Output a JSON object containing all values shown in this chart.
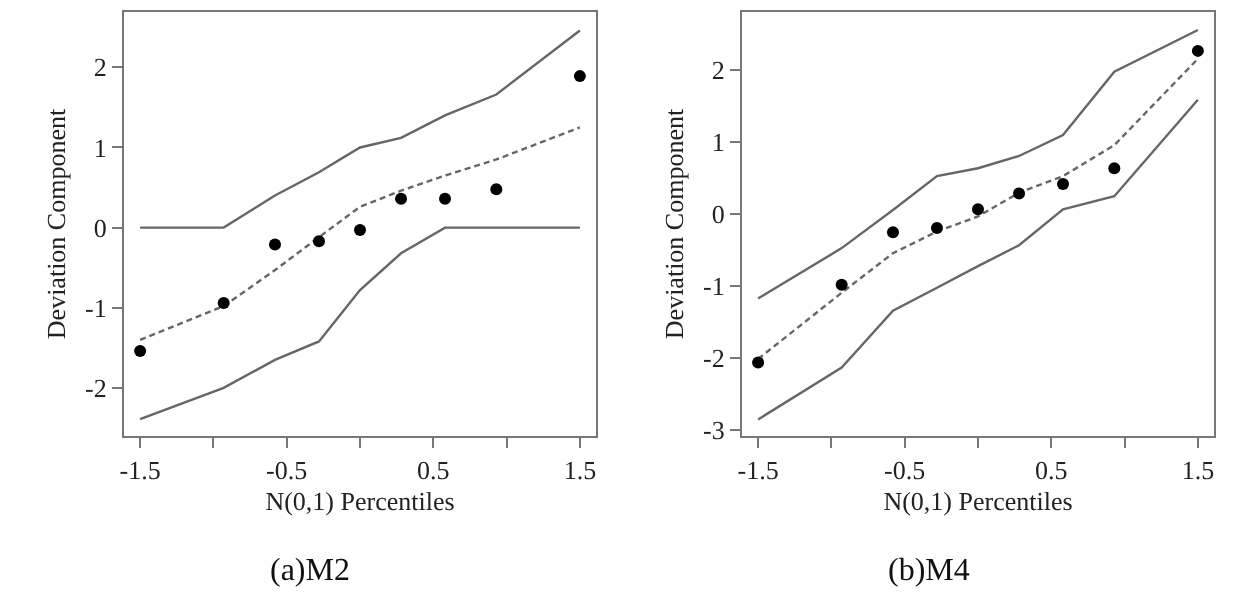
{
  "chart_data": [
    {
      "type": "scatter",
      "title": "(a)M2",
      "xlabel": "N(0,1) Percentiles",
      "ylabel": "Deviation Component",
      "xlim": [
        -1.61,
        1.61
      ],
      "ylim": [
        -2.6,
        2.69
      ],
      "xticks": [
        -1.5,
        {
          "value": -1,
          "label": null
        },
        -0.5,
        {
          "value": 0,
          "label": null
        },
        0.5,
        {
          "value": 1,
          "label": null
        },
        1.5
      ],
      "yticks": [
        -2,
        -1,
        0,
        1,
        2
      ],
      "grid": false,
      "x": [
        -1.5,
        -0.93,
        -0.58,
        -0.28,
        0,
        0.28,
        0.58,
        0.93,
        1.5
      ],
      "series": [
        {
          "type": "line",
          "color": "#666666",
          "line_style": "solid",
          "marker": "none",
          "values": [
            0,
            0,
            0.4,
            0.69,
            1.0,
            1.12,
            1.4,
            1.66,
            2.46
          ]
        },
        {
          "type": "line",
          "color": "#666666",
          "line_style": "solid",
          "marker": "none",
          "values": [
            -2.39,
            -2.0,
            -1.65,
            -1.42,
            -0.78,
            -0.32,
            0,
            0,
            0
          ]
        },
        {
          "type": "line",
          "color": "#666666",
          "line_style": "dashed",
          "marker": "none",
          "values": [
            -1.4,
            -0.98,
            -0.53,
            -0.12,
            0.26,
            0.46,
            0.65,
            0.85,
            1.25
          ]
        },
        {
          "type": "scatter",
          "color": "#000000",
          "marker": "circle",
          "values": [
            -1.54,
            -0.94,
            -0.21,
            -0.17,
            -0.03,
            0.36,
            0.36,
            0.48,
            1.89
          ]
        }
      ]
    },
    {
      "type": "scatter",
      "title": "(b)M4",
      "xlabel": "N(0,1) Percentiles",
      "ylabel": "Deviation Component",
      "xlim": [
        -1.61,
        1.61
      ],
      "ylim": [
        -3.09,
        2.8
      ],
      "xticks": [
        -1.5,
        {
          "value": -1,
          "label": null
        },
        -0.5,
        {
          "value": 0,
          "label": null
        },
        0.5,
        {
          "value": 1,
          "label": null
        },
        1.5
      ],
      "yticks": [
        -3,
        -2,
        -1,
        0,
        1,
        2
      ],
      "grid": false,
      "x": [
        -1.5,
        -0.93,
        -0.58,
        -0.28,
        0,
        0.28,
        0.58,
        0.93,
        1.5
      ],
      "series": [
        {
          "type": "line",
          "color": "#666666",
          "line_style": "solid",
          "marker": "none",
          "values": [
            -1.18,
            -0.48,
            0.05,
            0.52,
            0.63,
            0.8,
            1.09,
            1.97,
            2.55
          ]
        },
        {
          "type": "line",
          "color": "#666666",
          "line_style": "solid",
          "marker": "none",
          "values": [
            -2.86,
            -2.14,
            -1.35,
            -1.03,
            -0.73,
            -0.44,
            0.06,
            0.24,
            1.58
          ]
        },
        {
          "type": "line",
          "color": "#666666",
          "line_style": "dashed",
          "marker": "none",
          "values": [
            -2.02,
            -1.1,
            -0.55,
            -0.25,
            -0.04,
            0.29,
            0.52,
            0.95,
            2.15
          ]
        },
        {
          "type": "scatter",
          "color": "#000000",
          "marker": "circle",
          "values": [
            -2.07,
            -0.99,
            -0.26,
            -0.2,
            0.06,
            0.28,
            0.41,
            0.63,
            2.26
          ]
        }
      ]
    }
  ]
}
